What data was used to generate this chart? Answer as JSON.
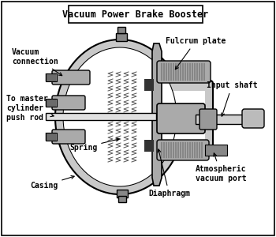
{
  "title": "Vacuum Power Brake Booster",
  "bg_color": "#ffffff",
  "border_color": "#000000",
  "fill_light": "#c8c8c8",
  "fill_dark": "#888888",
  "fill_mid": "#aaaaaa",
  "labels": {
    "vacuum_connection": "Vacuum\nconnection",
    "fulcrum_plate": "Fulcrum plate",
    "input_shaft": "Input shaft",
    "to_master": "To master\ncylinder\npush rod",
    "spring": "Spring",
    "casing": "Casing",
    "atmospheric": "Atmospheric\nvacuum port",
    "diaphragm": "Diaphragm"
  },
  "label_fontsize": 7,
  "title_fontsize": 8.5,
  "figsize": [
    3.5,
    3.0
  ],
  "dpi": 100
}
